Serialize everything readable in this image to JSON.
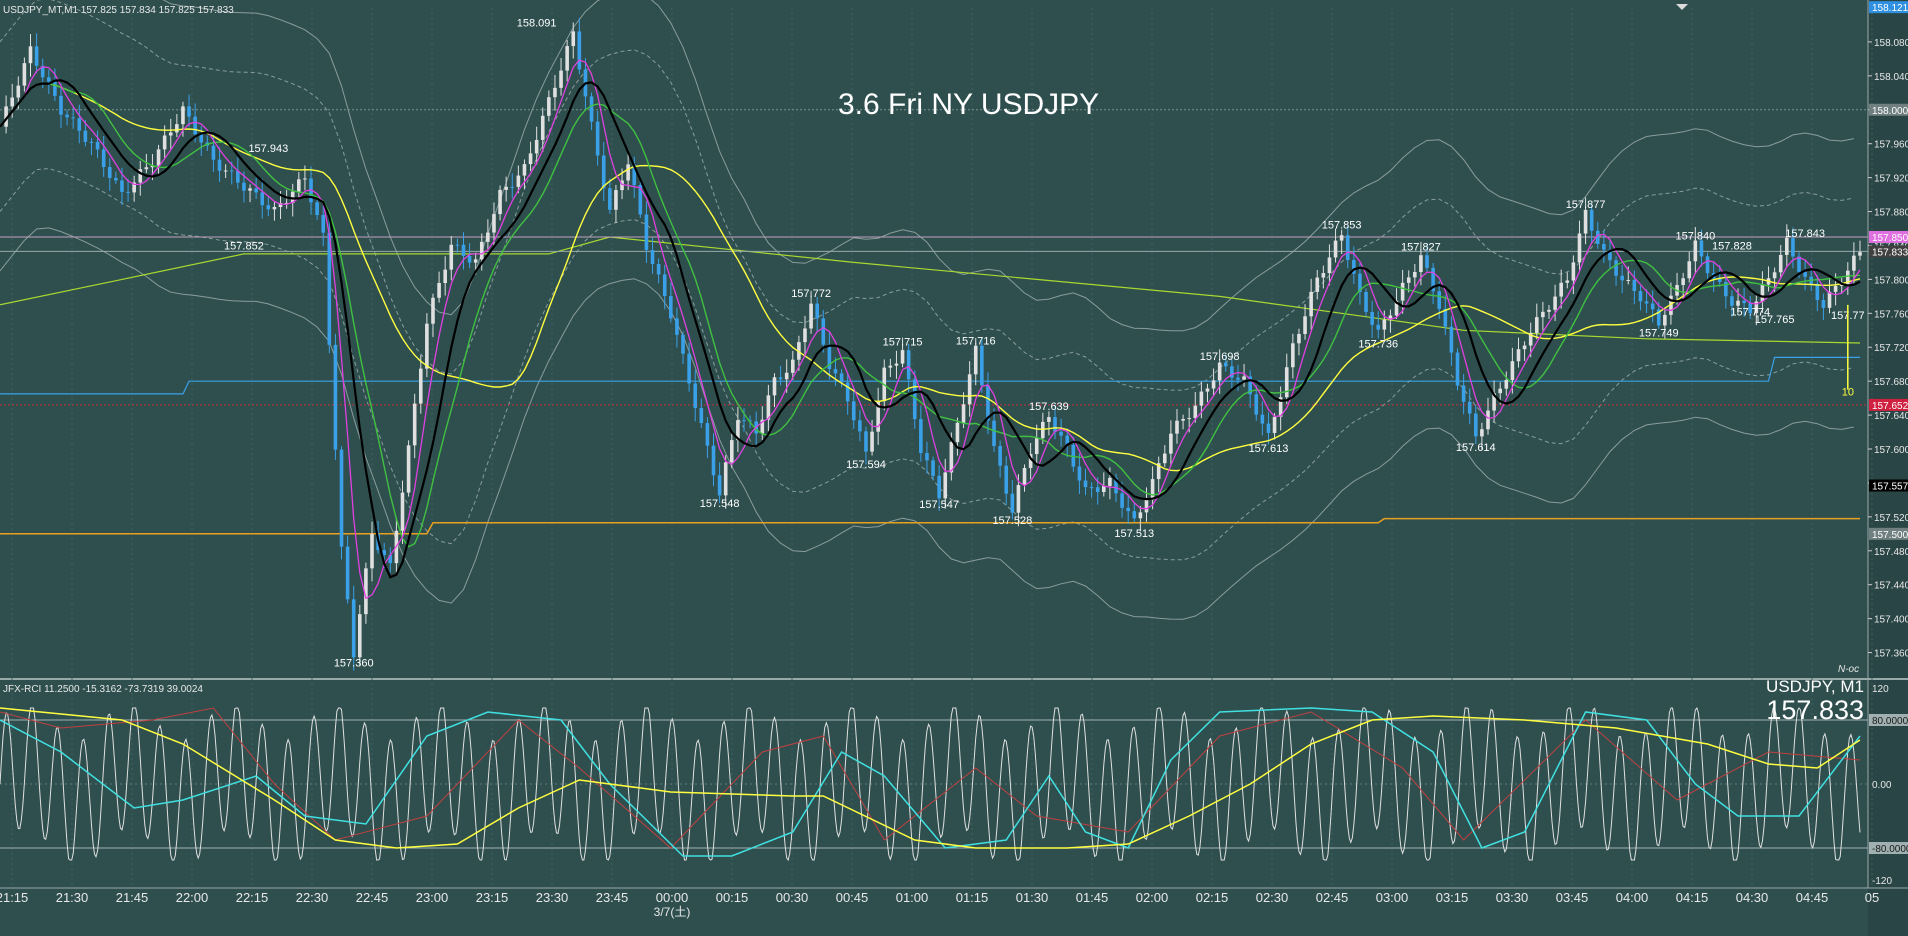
{
  "header": {
    "symbol_line": "USDJPY_MT,M1  157.825 157.834 157.825 157.833",
    "title": "3.6 Fri NY USDJPY",
    "indicator_line": "JFX-RCI 11.2500 -15.3162 -73.7319 39.0024",
    "subwindow_symbol": "USDJPY, M1",
    "subwindow_price": "157.833",
    "corner_tag": "N-oc"
  },
  "colors": {
    "background": "#2f4f4f",
    "bull": "#e0e0e0",
    "bear": "#3aa0e8",
    "ma_fast": "#e040e0",
    "ma_mid": "#40c040",
    "ma_slow": "#ffff40",
    "ma_black": "#000000",
    "support_line": "#e8a020",
    "blue_line": "#3aa0e8",
    "rci_white": "#e0e0e0",
    "rci_cyan": "#40e0e0",
    "rci_yellow": "#ffff40",
    "rci_red": "#c04040"
  },
  "chart_data": [
    {
      "type": "candlestick",
      "title": "3.6 Fri NY USDJPY",
      "symbol": "USDJPY_MT,M1",
      "ylim": [
        157.33,
        158.12
      ],
      "x_ticks": [
        "21:15",
        "21:30",
        "21:45",
        "22:00",
        "22:15",
        "22:30",
        "22:45",
        "23:00",
        "23:15",
        "23:30",
        "23:45",
        "00:00",
        "00:15",
        "00:30",
        "00:45",
        "01:00",
        "01:15",
        "01:30",
        "01:45",
        "02:00",
        "02:15",
        "02:30",
        "02:45",
        "03:00",
        "03:15",
        "03:30",
        "03:45",
        "04:00",
        "04:15",
        "04:30",
        "04:45",
        "05"
      ],
      "date_label": "3/7(土)",
      "y_ticks": [
        "158.080",
        "158.040",
        "158.000",
        "157.960",
        "157.920",
        "157.880",
        "157.840",
        "157.800",
        "157.760",
        "157.720",
        "157.680",
        "157.640",
        "157.600",
        "157.560",
        "157.520",
        "157.480",
        "157.440",
        "157.400",
        "157.360"
      ],
      "y_tick_values": [
        158.08,
        158.04,
        158.0,
        157.96,
        157.92,
        157.88,
        157.84,
        157.8,
        157.76,
        157.72,
        157.68,
        157.64,
        157.6,
        157.56,
        157.52,
        157.48,
        157.44,
        157.4,
        157.36
      ],
      "price_tags": [
        {
          "label": "158.121",
          "value": 158.121,
          "color": "#2f8fe0"
        },
        {
          "label": "158.000",
          "value": 158.0,
          "color": "#708080"
        },
        {
          "label": "157.850",
          "value": 157.85,
          "color": "#e070e0"
        },
        {
          "label": "157.833",
          "value": 157.833,
          "color": "#404040"
        },
        {
          "label": "157.652",
          "value": 157.652,
          "color": "#d02040"
        },
        {
          "label": "157.557",
          "value": 157.557,
          "color": "#000000"
        },
        {
          "label": "157.500",
          "value": 157.5,
          "color": "#708080"
        }
      ],
      "price_path": [
        [
          0,
          157.98
        ],
        [
          5,
          158.07
        ],
        [
          10,
          158.0
        ],
        [
          15,
          157.96
        ],
        [
          20,
          157.9
        ],
        [
          25,
          157.94
        ],
        [
          30,
          158.0
        ],
        [
          35,
          157.94
        ],
        [
          40,
          157.91
        ],
        [
          45,
          157.88
        ],
        [
          50,
          157.92
        ],
        [
          53,
          157.85
        ],
        [
          56,
          157.48
        ],
        [
          58,
          157.36
        ],
        [
          61,
          157.5
        ],
        [
          64,
          157.46
        ],
        [
          67,
          157.6
        ],
        [
          70,
          157.75
        ],
        [
          74,
          157.84
        ],
        [
          78,
          157.82
        ],
        [
          82,
          157.9
        ],
        [
          86,
          157.93
        ],
        [
          90,
          158.01
        ],
        [
          94,
          158.09
        ],
        [
          97,
          157.98
        ],
        [
          100,
          157.88
        ],
        [
          103,
          157.94
        ],
        [
          106,
          157.84
        ],
        [
          110,
          157.76
        ],
        [
          113,
          157.68
        ],
        [
          116,
          157.6
        ],
        [
          118,
          157.548
        ],
        [
          121,
          157.64
        ],
        [
          124,
          157.62
        ],
        [
          127,
          157.68
        ],
        [
          130,
          157.7
        ],
        [
          133,
          157.772
        ],
        [
          136,
          157.7
        ],
        [
          139,
          157.66
        ],
        [
          142,
          157.594
        ],
        [
          145,
          157.69
        ],
        [
          148,
          157.715
        ],
        [
          151,
          157.6
        ],
        [
          154,
          157.547
        ],
        [
          157,
          157.63
        ],
        [
          160,
          157.716
        ],
        [
          163,
          157.6
        ],
        [
          166,
          157.528
        ],
        [
          169,
          157.6
        ],
        [
          172,
          157.639
        ],
        [
          175,
          157.6
        ],
        [
          178,
          157.55
        ],
        [
          182,
          157.56
        ],
        [
          186,
          157.513
        ],
        [
          189,
          157.56
        ],
        [
          192,
          157.62
        ],
        [
          196,
          157.65
        ],
        [
          200,
          157.698
        ],
        [
          204,
          157.68
        ],
        [
          208,
          157.613
        ],
        [
          212,
          157.72
        ],
        [
          216,
          157.8
        ],
        [
          220,
          157.853
        ],
        [
          223,
          157.78
        ],
        [
          226,
          157.736
        ],
        [
          230,
          157.79
        ],
        [
          233,
          157.827
        ],
        [
          236,
          157.77
        ],
        [
          239,
          157.68
        ],
        [
          242,
          157.614
        ],
        [
          245,
          157.66
        ],
        [
          248,
          157.7
        ],
        [
          251,
          157.74
        ],
        [
          254,
          157.77
        ],
        [
          257,
          157.8
        ],
        [
          260,
          157.877
        ],
        [
          263,
          157.83
        ],
        [
          266,
          157.8
        ],
        [
          269,
          157.78
        ],
        [
          272,
          157.749
        ],
        [
          275,
          157.79
        ],
        [
          278,
          157.84
        ],
        [
          281,
          157.8
        ],
        [
          284,
          157.774
        ],
        [
          287,
          157.765
        ],
        [
          290,
          157.8
        ],
        [
          293,
          157.843
        ],
        [
          296,
          157.8
        ],
        [
          299,
          157.77
        ],
        [
          302,
          157.8
        ],
        [
          305,
          157.833
        ]
      ],
      "price_labels": [
        {
          "x": 88,
          "label": "158.091",
          "value": 158.091,
          "pos": "above"
        },
        {
          "x": 44,
          "label": "157.943",
          "value": 157.943,
          "pos": "above"
        },
        {
          "x": 40,
          "label": "157.852",
          "value": 157.852,
          "pos": "below"
        },
        {
          "x": 58,
          "label": "157.360",
          "value": 157.36,
          "pos": "below"
        },
        {
          "x": 118,
          "label": "157.548",
          "value": 157.548,
          "pos": "below"
        },
        {
          "x": 133,
          "label": "157.772",
          "value": 157.772,
          "pos": "above"
        },
        {
          "x": 142,
          "label": "157.594",
          "value": 157.594,
          "pos": "below"
        },
        {
          "x": 148,
          "label": "157.715",
          "value": 157.715,
          "pos": "above"
        },
        {
          "x": 154,
          "label": "157.547",
          "value": 157.547,
          "pos": "below"
        },
        {
          "x": 160,
          "label": "157.716",
          "value": 157.716,
          "pos": "above"
        },
        {
          "x": 166,
          "label": "157.528",
          "value": 157.528,
          "pos": "below"
        },
        {
          "x": 172,
          "label": "157.639",
          "value": 157.639,
          "pos": "above"
        },
        {
          "x": 186,
          "label": "157.513",
          "value": 157.513,
          "pos": "below"
        },
        {
          "x": 200,
          "label": "157.698",
          "value": 157.698,
          "pos": "above"
        },
        {
          "x": 208,
          "label": "157.613",
          "value": 157.613,
          "pos": "below"
        },
        {
          "x": 220,
          "label": "157.853",
          "value": 157.853,
          "pos": "above"
        },
        {
          "x": 226,
          "label": "157.736",
          "value": 157.736,
          "pos": "below"
        },
        {
          "x": 233,
          "label": "157.827",
          "value": 157.827,
          "pos": "above"
        },
        {
          "x": 242,
          "label": "157.614",
          "value": 157.614,
          "pos": "below"
        },
        {
          "x": 260,
          "label": "157.877",
          "value": 157.877,
          "pos": "above"
        },
        {
          "x": 272,
          "label": "157.749",
          "value": 157.749,
          "pos": "below"
        },
        {
          "x": 278,
          "label": "157.840",
          "value": 157.84,
          "pos": "above"
        },
        {
          "x": 284,
          "label": "157.828",
          "value": 157.828,
          "pos": "above"
        },
        {
          "x": 287,
          "label": "157.774",
          "value": 157.774,
          "pos": "below"
        },
        {
          "x": 291,
          "label": "157.765",
          "value": 157.765,
          "pos": "below"
        },
        {
          "x": 296,
          "label": "157.843",
          "value": 157.843,
          "pos": "above"
        },
        {
          "x": 303,
          "label": "157.77",
          "value": 157.77,
          "pos": "below"
        }
      ],
      "support_line": [
        [
          0,
          157.5
        ],
        [
          70,
          157.5
        ],
        [
          71,
          157.513
        ],
        [
          226,
          157.513
        ],
        [
          227,
          157.518
        ],
        [
          305,
          157.518
        ]
      ],
      "blue_line": [
        [
          0,
          157.665
        ],
        [
          30,
          157.665
        ],
        [
          31,
          157.68
        ],
        [
          290,
          157.68
        ],
        [
          291,
          157.708
        ],
        [
          305,
          157.708
        ]
      ],
      "green_step_line": [
        [
          0,
          157.77
        ],
        [
          20,
          157.8
        ],
        [
          40,
          157.83
        ],
        [
          90,
          157.83
        ],
        [
          100,
          157.85
        ],
        [
          140,
          157.82
        ],
        [
          170,
          157.8
        ],
        [
          200,
          157.78
        ],
        [
          240,
          157.74
        ],
        [
          270,
          157.73
        ],
        [
          305,
          157.725
        ]
      ],
      "rci_end_label": "10"
    },
    {
      "type": "line",
      "title": "JFX-RCI 11.2500 -15.3162 -73.7319 39.0024",
      "ylim": [
        -120,
        120
      ],
      "y_ticks": [
        "120",
        "80.0000",
        "0.00",
        "-80.0000",
        "-120"
      ],
      "y_tick_values": [
        120,
        80,
        0,
        -80,
        -120
      ],
      "yellow_path": [
        [
          0,
          95
        ],
        [
          20,
          80
        ],
        [
          30,
          50
        ],
        [
          45,
          -20
        ],
        [
          55,
          -70
        ],
        [
          65,
          -80
        ],
        [
          75,
          -75
        ],
        [
          85,
          -30
        ],
        [
          95,
          5
        ],
        [
          110,
          -10
        ],
        [
          130,
          -15
        ],
        [
          135,
          -15
        ],
        [
          150,
          -70
        ],
        [
          160,
          -80
        ],
        [
          175,
          -80
        ],
        [
          185,
          -75
        ],
        [
          195,
          -40
        ],
        [
          205,
          0
        ],
        [
          215,
          50
        ],
        [
          225,
          80
        ],
        [
          235,
          85
        ],
        [
          250,
          80
        ],
        [
          265,
          70
        ],
        [
          280,
          50
        ],
        [
          290,
          25
        ],
        [
          298,
          20
        ],
        [
          305,
          55
        ]
      ],
      "cyan_path": [
        [
          0,
          80
        ],
        [
          10,
          40
        ],
        [
          22,
          -30
        ],
        [
          30,
          -20
        ],
        [
          42,
          10
        ],
        [
          50,
          -40
        ],
        [
          60,
          -50
        ],
        [
          70,
          60
        ],
        [
          80,
          90
        ],
        [
          92,
          80
        ],
        [
          100,
          0
        ],
        [
          112,
          -90
        ],
        [
          120,
          -90
        ],
        [
          130,
          -60
        ],
        [
          138,
          40
        ],
        [
          145,
          10
        ],
        [
          155,
          -80
        ],
        [
          165,
          -70
        ],
        [
          172,
          10
        ],
        [
          178,
          -60
        ],
        [
          185,
          -80
        ],
        [
          192,
          30
        ],
        [
          200,
          90
        ],
        [
          215,
          95
        ],
        [
          225,
          90
        ],
        [
          235,
          40
        ],
        [
          243,
          -80
        ],
        [
          250,
          -60
        ],
        [
          260,
          90
        ],
        [
          270,
          80
        ],
        [
          278,
          0
        ],
        [
          285,
          -40
        ],
        [
          295,
          -40
        ],
        [
          305,
          60
        ]
      ],
      "red_path": [
        [
          0,
          90
        ],
        [
          10,
          70
        ],
        [
          25,
          80
        ],
        [
          35,
          95
        ],
        [
          45,
          0
        ],
        [
          55,
          -70
        ],
        [
          70,
          -40
        ],
        [
          85,
          80
        ],
        [
          95,
          20
        ],
        [
          110,
          -80
        ],
        [
          125,
          40
        ],
        [
          135,
          60
        ],
        [
          145,
          -70
        ],
        [
          160,
          20
        ],
        [
          170,
          -40
        ],
        [
          185,
          -60
        ],
        [
          200,
          60
        ],
        [
          215,
          90
        ],
        [
          230,
          20
        ],
        [
          240,
          -70
        ],
        [
          260,
          80
        ],
        [
          275,
          -20
        ],
        [
          290,
          40
        ],
        [
          305,
          30
        ]
      ],
      "white_period": 4.2
    }
  ]
}
